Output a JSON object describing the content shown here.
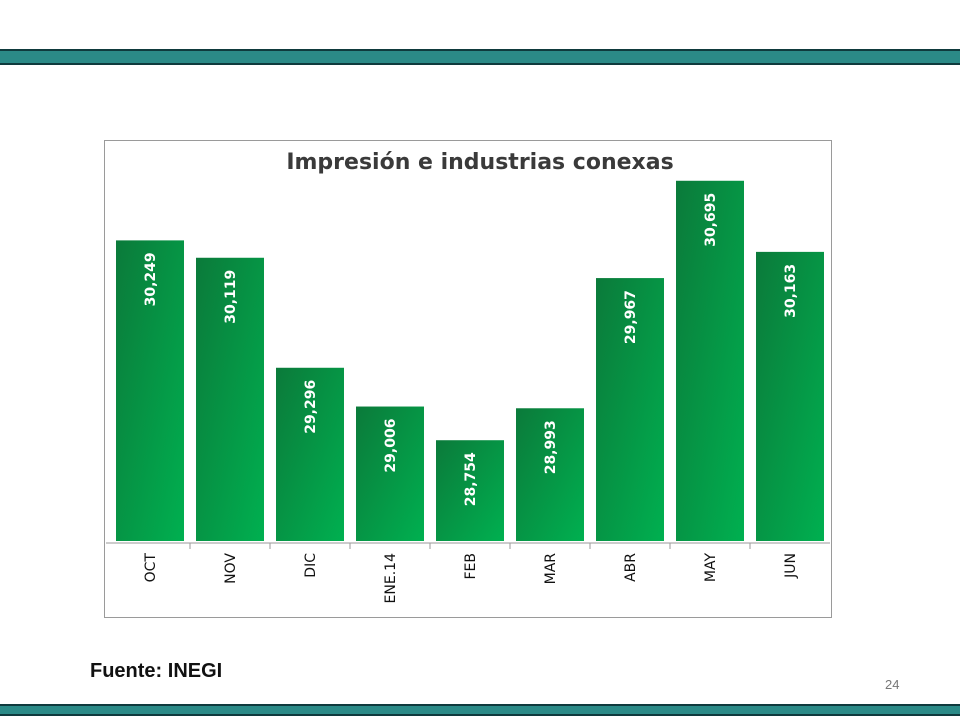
{
  "page": {
    "source_text": "Fuente: INEGI",
    "page_number": "24",
    "band_color": "#2b8a87"
  },
  "chart_data": {
    "type": "bar",
    "title": "Impresión e industrias conexas",
    "categories": [
      "OCT",
      "NOV",
      "DIC",
      "ENE.14",
      "FEB",
      "MAR",
      "ABR",
      "MAY",
      "JUN"
    ],
    "values": [
      30249,
      30119,
      29296,
      29006,
      28754,
      28993,
      29967,
      30695,
      30163
    ],
    "value_labels": [
      "30,249",
      "30,119",
      "29,296",
      "29,006",
      "28,754",
      "28,993",
      "29,967",
      "30,695",
      "30,163"
    ],
    "ylim": [
      28000,
      31000
    ],
    "bar_color": "#00a651",
    "grid": false,
    "legend": "none"
  }
}
